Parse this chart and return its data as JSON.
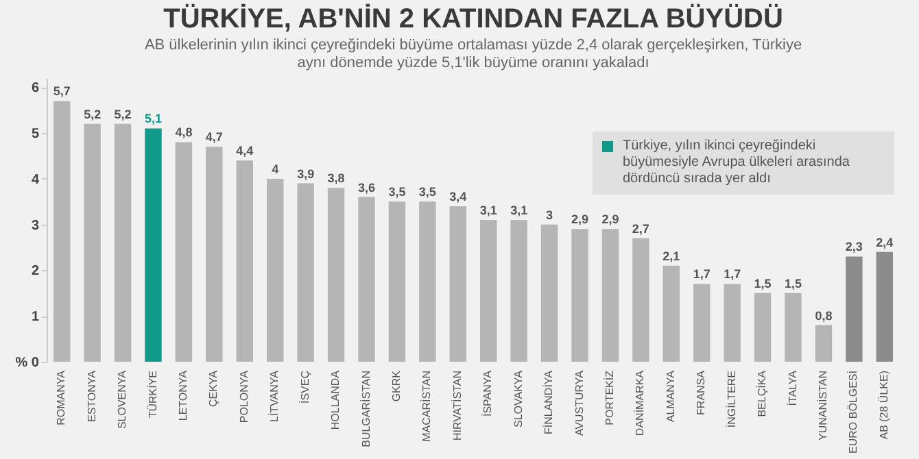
{
  "chart_data": {
    "type": "bar",
    "title": "TÜRKİYE, AB'NİN 2 KATINDAN FAZLA BÜYÜDÜ",
    "subtitle": "AB ülkelerinin yılın ikinci çeyreğindeki büyüme ortalaması yüzde 2,4 olarak gerçekleşirken, Türkiye aynı dönemde yüzde 5,1'lik büyüme oranını yakaladı",
    "annotations": [
      "Türkiye, yılın ikinci çeyreğindeki büyümesiyle Avrupa ülkeleri arasında dördüncü sırada yer aldı"
    ],
    "categories": [
      "ROMANYA",
      "ESTONYA",
      "SLOVENYA",
      "TÜRKİYE",
      "LETONYA",
      "ÇEKYA",
      "POLONYA",
      "LİTVANYA",
      "İSVEÇ",
      "HOLLANDA",
      "BULGARİSTAN",
      "GKRK",
      "MACARİSTAN",
      "HIRVATİSTAN",
      "İSPANYA",
      "SLOVAKYA",
      "FİNLANDİYA",
      "AVUSTURYA",
      "PORTEKİZ",
      "DANİMARKA",
      "ALMANYA",
      "FRANSA",
      "İNGİLTERE",
      "BELÇİKA",
      "İTALYA",
      "YUNANİSTAN",
      "EURO BÖLGESİ",
      "AB (28 ÜLKE)"
    ],
    "values": [
      5.7,
      5.2,
      5.2,
      5.1,
      4.8,
      4.7,
      4.4,
      4,
      3.9,
      3.8,
      3.6,
      3.5,
      3.5,
      3.4,
      3.1,
      3.1,
      3,
      2.9,
      2.9,
      2.7,
      2.1,
      1.7,
      1.7,
      1.5,
      1.5,
      0.8,
      2.3,
      2.4
    ],
    "colors": [
      "#b5b5b5",
      "#b5b5b5",
      "#b5b5b5",
      "#0f9a8a",
      "#b5b5b5",
      "#b5b5b5",
      "#b5b5b5",
      "#b5b5b5",
      "#b5b5b5",
      "#b5b5b5",
      "#b5b5b5",
      "#b5b5b5",
      "#b5b5b5",
      "#b5b5b5",
      "#b5b5b5",
      "#b5b5b5",
      "#b5b5b5",
      "#b5b5b5",
      "#b5b5b5",
      "#b5b5b5",
      "#b5b5b5",
      "#b5b5b5",
      "#b5b5b5",
      "#b5b5b5",
      "#b5b5b5",
      "#b5b5b5",
      "#8c8c8c",
      "#8c8c8c"
    ],
    "ylim": [
      0,
      6.2
    ],
    "yticks": [
      {
        "value": 0,
        "label": "% 0"
      },
      1,
      2,
      3,
      4,
      5,
      6
    ],
    "grid": false,
    "value_labels": [
      "5,7",
      "5,2",
      "5,2",
      "5,1",
      "4,8",
      "4,7",
      "4,4",
      "4",
      "3,9",
      "3,8",
      "3,6",
      "3,5",
      "3,5",
      "3,4",
      "3,1",
      "3,1",
      "3",
      "2,9",
      "2,9",
      "2,7",
      "2,1",
      "1,7",
      "1,7",
      "1,5",
      "1,5",
      "0,8",
      "2,3",
      "2,4"
    ]
  }
}
